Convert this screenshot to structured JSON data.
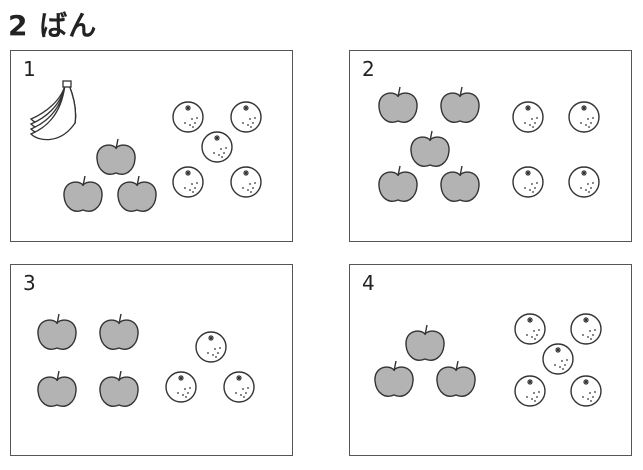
{
  "header": {
    "title": "2 ばん"
  },
  "panels": [
    {
      "number": "1",
      "apples": 3,
      "oranges": 5,
      "bananas": 1
    },
    {
      "number": "2",
      "apples": 5,
      "oranges": 4,
      "bananas": 0
    },
    {
      "number": "3",
      "apples": 4,
      "oranges": 3,
      "bananas": 0
    },
    {
      "number": "4",
      "apples": 3,
      "oranges": 5,
      "bananas": 0
    }
  ],
  "colors": {
    "apple_fill": "#b3b3b3",
    "outline": "#333333",
    "orange_fill": "#ffffff"
  }
}
